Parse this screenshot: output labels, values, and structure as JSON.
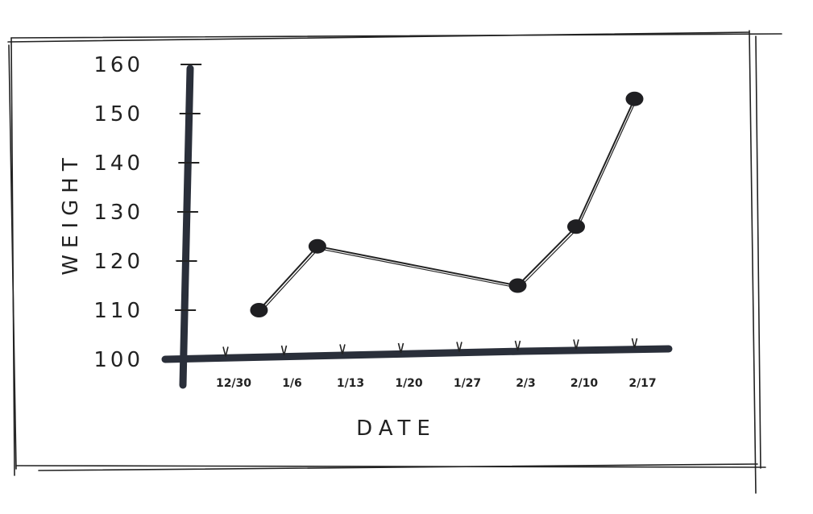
{
  "chart_data": {
    "type": "line",
    "title": "",
    "xlabel": "DATE",
    "ylabel": "WEIGHT",
    "categories": [
      "12/30",
      "1/6",
      "1/13",
      "1/20",
      "1/27",
      "2/3",
      "2/10",
      "2/17"
    ],
    "yticks": [
      "100",
      "110",
      "120",
      "130",
      "140",
      "150",
      "160"
    ],
    "ylim": [
      100,
      160
    ],
    "grid": false,
    "series": [
      {
        "x": [
          "1/3",
          "1/10",
          "2/3",
          "2/10",
          "2/17"
        ],
        "values": [
          110,
          123,
          115,
          127,
          153
        ]
      }
    ]
  }
}
